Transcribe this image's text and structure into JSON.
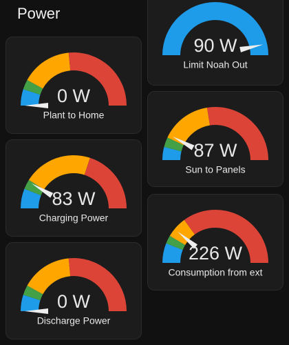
{
  "header": {
    "title": "Power"
  },
  "cards": [
    {
      "value": "0 W",
      "name": "Plant to Home"
    },
    {
      "value": "83 W",
      "name": "Charging Power"
    },
    {
      "value": "0 W",
      "name": "Discharge Power"
    },
    {
      "value": "90 W",
      "name": "Limit Noah Out"
    },
    {
      "value": "87 W",
      "name": "Sun to Panels"
    },
    {
      "value": "226 W",
      "name": "Consumption from ext"
    }
  ]
}
